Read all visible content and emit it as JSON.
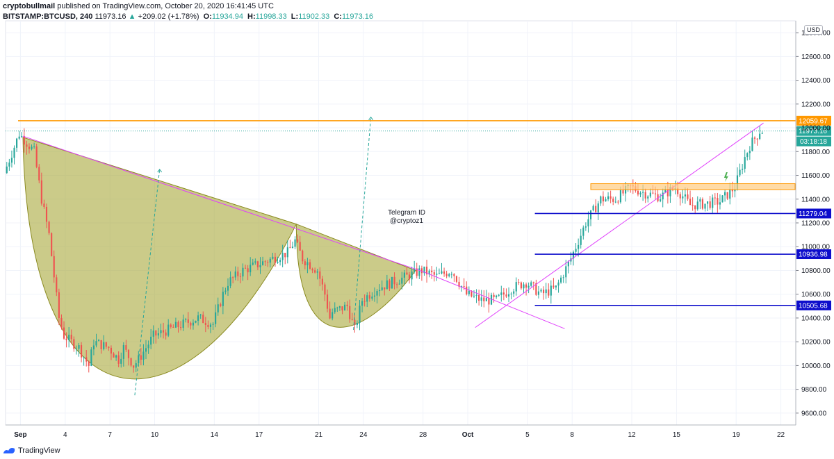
{
  "header": {
    "author": "cryptobullmail",
    "published": "published on TradingView.com, October 20, 2020 16:41:45 UTC",
    "symbol": "BITSTAMP:BTCUSD, 240",
    "last": "11973.16",
    "change": "+209.02 (+1.78%)",
    "open_label": "O:",
    "open": "11934.94",
    "high_label": "H:",
    "high": "11998.33",
    "low_label": "L:",
    "low": "11902.33",
    "close_label": "C:",
    "close": "11973.16"
  },
  "currency": "USD",
  "footer": {
    "brand": "TradingView"
  },
  "colors": {
    "up": "#26a69a",
    "down": "#ef5350",
    "fill": "#a9a93a",
    "trend": "#e040fb",
    "resistance": "#ff9800",
    "support": "#0d0dcc",
    "last": "#26a69a"
  },
  "chart_data": {
    "type": "candlestick",
    "title": "",
    "y_range": [
      9500,
      12900
    ],
    "y_ticks": [
      9600,
      9800,
      10000,
      10200,
      10400,
      10600,
      10800,
      11000,
      11200,
      11400,
      11600,
      11800,
      12000,
      12200,
      12400,
      12600,
      12800
    ],
    "y_tick_labels": [
      "9600.00",
      "9800.00",
      "10000.00",
      "10200.00",
      "10400.00",
      "10600.00",
      "10800.00",
      "11000.00",
      "11200.00",
      "11400.00",
      "11600.00",
      "11800.00",
      "12000.00",
      "12200.00",
      "12400.00",
      "12600.00",
      "12800.00"
    ],
    "x_range": [
      "2020-08-31",
      "2020-10-23"
    ],
    "x_ticks": [
      {
        "date": "2020-09-01",
        "label": "Sep"
      },
      {
        "date": "2020-09-04",
        "label": "4"
      },
      {
        "date": "2020-09-07",
        "label": "7"
      },
      {
        "date": "2020-09-10",
        "label": "10"
      },
      {
        "date": "2020-09-14",
        "label": "14"
      },
      {
        "date": "2020-09-17",
        "label": "17"
      },
      {
        "date": "2020-09-21",
        "label": "21"
      },
      {
        "date": "2020-09-24",
        "label": "24"
      },
      {
        "date": "2020-09-28",
        "label": "28"
      },
      {
        "date": "2020-10-01",
        "label": "Oct"
      },
      {
        "date": "2020-10-05",
        "label": "5"
      },
      {
        "date": "2020-10-08",
        "label": "8"
      },
      {
        "date": "2020-10-12",
        "label": "12"
      },
      {
        "date": "2020-10-15",
        "label": "15"
      },
      {
        "date": "2020-10-19",
        "label": "19"
      },
      {
        "date": "2020-10-22",
        "label": "22"
      }
    ],
    "price_path": [
      [
        "2020-08-31",
        11620
      ],
      [
        "2020-09-01",
        11950
      ],
      [
        "2020-09-02",
        11800
      ],
      [
        "2020-09-02T12:00",
        11400
      ],
      [
        "2020-09-03",
        11100
      ],
      [
        "2020-09-03T16:00",
        10400
      ],
      [
        "2020-09-04",
        10250
      ],
      [
        "2020-09-05",
        10150
      ],
      [
        "2020-09-05T16:00",
        10000
      ],
      [
        "2020-09-06",
        10200
      ],
      [
        "2020-09-07",
        10150
      ],
      [
        "2020-09-07T16:00",
        10050
      ],
      [
        "2020-09-08",
        10150
      ],
      [
        "2020-09-08T16:00",
        10000
      ],
      [
        "2020-09-09",
        10050
      ],
      [
        "2020-09-10",
        10250
      ],
      [
        "2020-09-11",
        10300
      ],
      [
        "2020-09-12",
        10350
      ],
      [
        "2020-09-13",
        10400
      ],
      [
        "2020-09-14",
        10350
      ],
      [
        "2020-09-14T16:00",
        10600
      ],
      [
        "2020-09-15",
        10700
      ],
      [
        "2020-09-16",
        10800
      ],
      [
        "2020-09-17",
        10850
      ],
      [
        "2020-09-18",
        10900
      ],
      [
        "2020-09-19",
        10950
      ],
      [
        "2020-09-19T12:00",
        11050
      ],
      [
        "2020-09-20",
        10900
      ],
      [
        "2020-09-21",
        10800
      ],
      [
        "2020-09-21T12:00",
        10600
      ],
      [
        "2020-09-21T20:00",
        10400
      ],
      [
        "2020-09-22",
        10450
      ],
      [
        "2020-09-23",
        10500
      ],
      [
        "2020-09-23T12:00",
        10300
      ],
      [
        "2020-09-24",
        10550
      ],
      [
        "2020-09-25",
        10650
      ],
      [
        "2020-09-26",
        10700
      ],
      [
        "2020-09-27",
        10750
      ],
      [
        "2020-09-28",
        10800
      ],
      [
        "2020-09-29",
        10750
      ],
      [
        "2020-09-30",
        10800
      ],
      [
        "2020-10-01",
        10600
      ],
      [
        "2020-10-02",
        10550
      ],
      [
        "2020-10-03",
        10550
      ],
      [
        "2020-10-04",
        10650
      ],
      [
        "2020-10-05",
        10700
      ],
      [
        "2020-10-06",
        10600
      ],
      [
        "2020-10-07",
        10650
      ],
      [
        "2020-10-08",
        10900
      ],
      [
        "2020-10-09",
        11200
      ],
      [
        "2020-10-10",
        11400
      ],
      [
        "2020-10-11",
        11400
      ],
      [
        "2020-10-12",
        11500
      ],
      [
        "2020-10-13",
        11450
      ],
      [
        "2020-10-14",
        11420
      ],
      [
        "2020-10-15",
        11500
      ],
      [
        "2020-10-16",
        11350
      ],
      [
        "2020-10-17",
        11360
      ],
      [
        "2020-10-18",
        11380
      ],
      [
        "2020-10-19",
        11500
      ],
      [
        "2020-10-19T16:00",
        11750
      ],
      [
        "2020-10-20",
        11850
      ],
      [
        "2020-10-20T16:00",
        11973.16
      ]
    ],
    "horizontal_lines": [
      {
        "price": 12059.67,
        "label": "12059.67",
        "color": "#ff9800"
      },
      {
        "price": 11279.04,
        "label": "11279.04",
        "color": "#0d0dcc"
      },
      {
        "price": 10936.98,
        "label": "10936.98",
        "color": "#0d0dcc"
      },
      {
        "price": 10505.68,
        "label": "10505.68",
        "color": "#0d0dcc"
      }
    ],
    "last_price": {
      "price": 11973.16,
      "label": "11973.16",
      "countdown": "03:18:18"
    },
    "annotations": [
      {
        "text": "Telegram ID"
      },
      {
        "text": "@cryptoz1"
      }
    ]
  }
}
